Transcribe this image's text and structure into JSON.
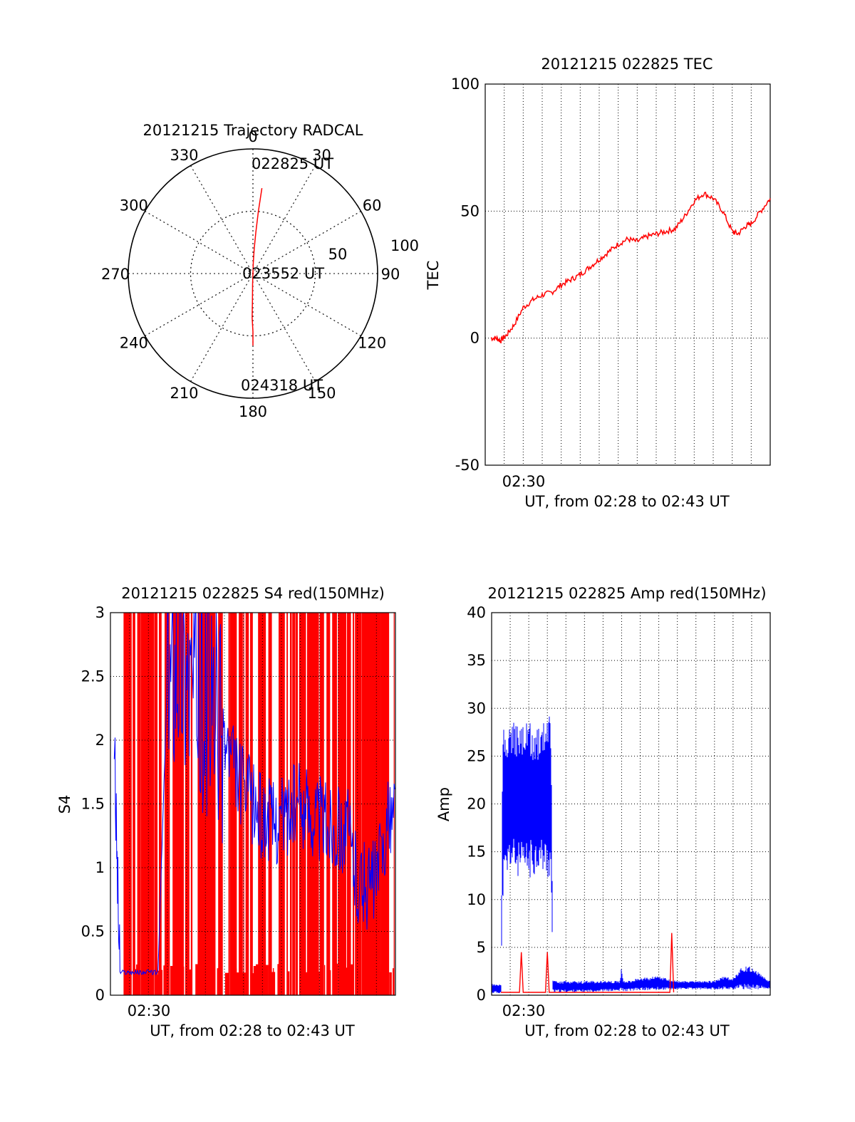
{
  "colors": {
    "red": "#ff0000",
    "blue": "#0000ff",
    "axis": "#000000",
    "grid": "#000000"
  },
  "chart_data": [
    {
      "id": "trajectory",
      "type": "polar",
      "title": "20121215 Trajectory RADCAL",
      "azimuth_labels": [
        "0",
        "30",
        "60",
        "90",
        "120",
        "150",
        "180",
        "210",
        "240",
        "270",
        "300",
        "330"
      ],
      "radial_labels": [
        "50",
        "100"
      ],
      "rlim": [
        0,
        100
      ],
      "grid": true,
      "time_labels": [
        {
          "text": "022825 UT",
          "point": "start"
        },
        {
          "text": "023552 UT",
          "point": "middle"
        },
        {
          "text": "024318 UT",
          "point": "end"
        }
      ],
      "series": [
        {
          "color": "#ff0000",
          "points_az_el": [
            [
              6,
              28
            ],
            [
              5,
              45
            ],
            [
              4,
              60
            ],
            [
              3,
              72
            ],
            [
              2,
              82
            ],
            [
              0,
              90
            ],
            [
              182,
              82
            ],
            [
              181,
              70
            ],
            [
              181,
              58
            ],
            [
              180,
              48
            ],
            [
              180,
              38
            ]
          ]
        }
      ]
    },
    {
      "id": "tec",
      "type": "line",
      "title": "20121215 022825 TEC",
      "ylabel": "TEC",
      "xlabel": "UT, from 02:28 to 02:43 UT",
      "ylim": [
        -50,
        100
      ],
      "yticks": [
        "100",
        "50",
        "0",
        "-50"
      ],
      "xlim_minutes": [
        0,
        15
      ],
      "xtick_labels": [
        {
          "text": "02:30",
          "at_minute": 2
        }
      ],
      "grid": true,
      "series": [
        {
          "color": "#ff0000",
          "x_minutes": [
            0.3,
            0.6,
            0.8,
            1.1,
            1.5,
            2.0,
            2.5,
            3.0,
            3.5,
            4.0,
            4.5,
            5.0,
            5.5,
            6.0,
            6.5,
            7.0,
            7.5,
            8.0,
            8.5,
            9.0,
            9.5,
            10.0,
            10.5,
            11.0,
            11.5,
            12.0,
            12.5,
            13.0,
            13.3,
            13.7,
            14.0,
            14.5,
            15.0
          ],
          "y": [
            0,
            0,
            -1,
            1,
            5,
            12,
            15,
            17,
            18,
            21,
            23,
            25,
            28,
            31,
            34,
            37,
            39,
            38,
            40,
            41,
            42,
            43,
            48,
            54,
            57,
            55,
            50,
            42,
            41,
            44,
            45,
            50,
            55
          ]
        }
      ]
    },
    {
      "id": "s4",
      "type": "line",
      "title": "20121215 022825 S4 red(150MHz)",
      "ylabel": "S4",
      "xlabel": "UT, from 02:28 to 02:43 UT",
      "ylim": [
        0,
        3
      ],
      "yticks": [
        "3",
        "2.5",
        "2",
        "1.5",
        "1",
        "0.5",
        "0"
      ],
      "xlim_minutes": [
        0,
        15
      ],
      "xtick_labels": [
        {
          "text": "02:30",
          "at_minute": 2
        }
      ],
      "grid": true,
      "series": [
        {
          "color": "#ff0000",
          "description_values": "dense vertical spikes spanning 0 to 3 across the full interval"
        },
        {
          "color": "#0000ff",
          "x_minutes": [
            0.2,
            0.5,
            1.0,
            1.5,
            2.0,
            2.5,
            3.0,
            3.5,
            4.0,
            4.5,
            5.0,
            5.5,
            6.0,
            6.5,
            7.0,
            7.5,
            8.0,
            8.5,
            9.0,
            9.5,
            10.0,
            10.5,
            11.0,
            11.5,
            12.0,
            12.5,
            13.0,
            13.5,
            14.0,
            14.5,
            15.0
          ],
          "y": [
            2.0,
            0.18,
            0.18,
            0.18,
            0.18,
            0.18,
            2.5,
            2.8,
            2.6,
            2.4,
            2.3,
            2.2,
            2.0,
            1.8,
            1.6,
            1.5,
            1.4,
            1.35,
            1.4,
            1.45,
            1.5,
            1.45,
            1.4,
            1.35,
            1.3,
            1.3,
            0.9,
            0.85,
            0.9,
            1.3,
            1.5
          ]
        }
      ]
    },
    {
      "id": "amp",
      "type": "line",
      "title": "20121215 022825 Amp red(150MHz)",
      "ylabel": "Amp",
      "xlabel": "UT, from 02:28 to 02:43 UT",
      "ylim": [
        0,
        40
      ],
      "yticks": [
        "40",
        "35",
        "30",
        "25",
        "20",
        "15",
        "10",
        "5",
        "0"
      ],
      "xlim_minutes": [
        0,
        15
      ],
      "xtick_labels": [
        {
          "text": "02:30",
          "at_minute": 2
        }
      ],
      "grid": true,
      "series": [
        {
          "color": "#0000ff",
          "x_minutes": [
            0.0,
            0.5,
            0.6,
            1.0,
            1.5,
            2.0,
            2.5,
            3.0,
            3.2,
            3.3,
            4.0,
            5.0,
            6.0,
            6.9,
            7.0,
            7.1,
            8.0,
            9.0,
            10.0,
            11.0,
            12.0,
            12.5,
            13.0,
            13.5,
            14.0,
            15.0
          ],
          "y_low": [
            0.2,
            0.2,
            10,
            13,
            12,
            12,
            13,
            12,
            12,
            0.3,
            0.3,
            0.3,
            0.4,
            0.4,
            0.4,
            0.4,
            0.5,
            0.5,
            0.6,
            0.6,
            0.6,
            0.6,
            0.6,
            0.6,
            0.6,
            0.6
          ],
          "y_high": [
            1.2,
            1.2,
            28,
            29,
            28,
            29,
            28,
            30,
            29,
            1.5,
            1.5,
            1.5,
            1.5,
            1.5,
            3,
            1.5,
            1.8,
            2,
            1.5,
            1.5,
            1.5,
            2,
            1.8,
            3,
            3,
            1.5
          ]
        },
        {
          "color": "#ff0000",
          "x_minutes": [
            0.5,
            1.5,
            1.6,
            1.7,
            2.9,
            3.0,
            3.1,
            3.3,
            9.6,
            9.7,
            9.8
          ],
          "y": [
            0.3,
            0.3,
            4.5,
            0.3,
            0.3,
            4.5,
            0.3,
            0.3,
            0.3,
            6.5,
            0.3
          ]
        }
      ]
    }
  ]
}
